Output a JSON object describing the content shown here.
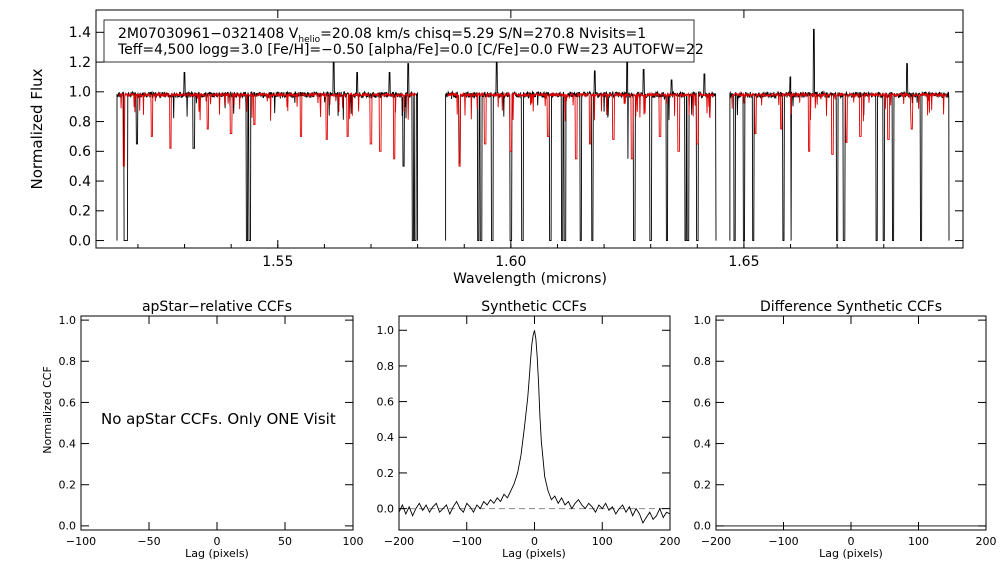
{
  "figure": {
    "header_line1": "2M07030961−0321408  V",
    "header_sub": "helio",
    "header_line1b": "=20.08 km/s  chisq=5.29  S/N=270.8  Nvisits=1",
    "header_line2": "Teff=4,500 logg=3.0 [Fe/H]=−0.50 [alpha/Fe]=0.0 [C/Fe]=0.0 FW=23 AUTOFW=22",
    "no_ccf_message": "No apStar CCFs.  Only ONE Visit"
  },
  "colors": {
    "observed": "#000000",
    "model": "#e00000",
    "zero_line": "#888888"
  },
  "chart_data": [
    {
      "type": "line",
      "xlabel": "Wavelength (microns)",
      "ylabel": "Normalized Flux",
      "xlim": [
        1.511,
        1.697
      ],
      "ylim": [
        -0.05,
        1.55
      ],
      "xticks": [
        1.55,
        1.6,
        1.65
      ],
      "xtick_labels": [
        "1.55",
        "1.60",
        "1.65"
      ],
      "yticks": [
        0.0,
        0.2,
        0.4,
        0.6,
        0.8,
        1.0,
        1.2,
        1.4
      ],
      "ytick_labels": [
        "0.0",
        "0.2",
        "0.4",
        "0.6",
        "0.8",
        "1.0",
        "1.2",
        "1.4"
      ],
      "chips": [
        [
          1.5155,
          1.58
        ],
        [
          1.586,
          1.644
        ],
        [
          1.647,
          1.694
        ]
      ],
      "continuum": 0.98,
      "observed_absorption": [
        [
          1.5172,
          0.0
        ],
        [
          1.5176,
          0.0
        ],
        [
          1.5198,
          0.65
        ],
        [
          1.532,
          0.62
        ],
        [
          1.5434,
          0.0
        ],
        [
          1.544,
          0.0
        ],
        [
          1.577,
          0.5
        ],
        [
          1.579,
          0.0
        ],
        [
          1.5795,
          0.0
        ],
        [
          1.589,
          0.52
        ],
        [
          1.593,
          0.0
        ],
        [
          1.5936,
          0.0
        ],
        [
          1.596,
          0.0
        ],
        [
          1.6,
          0.0
        ],
        [
          1.6025,
          0.0
        ],
        [
          1.6085,
          0.0
        ],
        [
          1.611,
          0.0
        ],
        [
          1.6116,
          0.0
        ],
        [
          1.615,
          0.0
        ],
        [
          1.6175,
          0.0
        ],
        [
          1.625,
          0.55
        ],
        [
          1.6265,
          0.0
        ],
        [
          1.63,
          0.0
        ],
        [
          1.6335,
          0.0
        ],
        [
          1.6375,
          0.0
        ],
        [
          1.638,
          0.0
        ],
        [
          1.64,
          0.0
        ],
        [
          1.648,
          0.0
        ],
        [
          1.65,
          0.0
        ],
        [
          1.652,
          0.0
        ],
        [
          1.6585,
          0.0
        ],
        [
          1.66,
          0.0
        ],
        [
          1.67,
          0.0
        ],
        [
          1.6715,
          0.0
        ],
        [
          1.6785,
          0.0
        ],
        [
          1.68,
          0.0
        ],
        [
          1.682,
          0.0
        ],
        [
          1.688,
          0.0
        ]
      ],
      "observed_emission": [
        [
          1.53,
          1.13
        ],
        [
          1.562,
          1.24
        ],
        [
          1.567,
          1.13
        ],
        [
          1.574,
          1.13
        ],
        [
          1.578,
          1.19
        ],
        [
          1.597,
          1.2
        ],
        [
          1.618,
          1.14
        ],
        [
          1.625,
          1.22
        ],
        [
          1.6285,
          1.15
        ],
        [
          1.6345,
          1.08
        ],
        [
          1.6415,
          1.12
        ],
        [
          1.66,
          1.1
        ],
        [
          1.665,
          1.42
        ],
        [
          1.685,
          1.19
        ]
      ],
      "model_absorption": [
        [
          1.517,
          0.5
        ],
        [
          1.523,
          0.7
        ],
        [
          1.527,
          0.62
        ],
        [
          1.535,
          0.75
        ],
        [
          1.54,
          0.72
        ],
        [
          1.545,
          0.78
        ],
        [
          1.555,
          0.7
        ],
        [
          1.5605,
          0.68
        ],
        [
          1.565,
          0.7
        ],
        [
          1.57,
          0.65
        ],
        [
          1.572,
          0.6
        ],
        [
          1.575,
          0.55
        ],
        [
          1.589,
          0.5
        ],
        [
          1.5945,
          0.65
        ],
        [
          1.6,
          0.6
        ],
        [
          1.608,
          0.7
        ],
        [
          1.614,
          0.55
        ],
        [
          1.617,
          0.65
        ],
        [
          1.622,
          0.68
        ],
        [
          1.626,
          0.55
        ],
        [
          1.632,
          0.7
        ],
        [
          1.636,
          0.6
        ],
        [
          1.64,
          0.65
        ],
        [
          1.6525,
          0.72
        ],
        [
          1.658,
          0.75
        ],
        [
          1.664,
          0.6
        ],
        [
          1.669,
          0.58
        ],
        [
          1.672,
          0.66
        ],
        [
          1.675,
          0.7
        ],
        [
          1.681,
          0.68
        ],
        [
          1.686,
          0.75
        ]
      ]
    },
    {
      "type": "line",
      "title": "apStar−relative CCFs",
      "xlabel": "Lag (pixels)",
      "ylabel": "Normalized CCF",
      "xlim": [
        -100,
        100
      ],
      "ylim": [
        -0.02,
        1.02
      ],
      "xticks": [
        -100,
        -50,
        0,
        50,
        100
      ],
      "xtick_labels": [
        "−100",
        "−50",
        "0",
        "50",
        "100"
      ],
      "yticks": [
        0.0,
        0.2,
        0.4,
        0.6,
        0.8,
        1.0
      ],
      "ytick_labels": [
        "0.0",
        "0.2",
        "0.4",
        "0.6",
        "0.8",
        "1.0"
      ],
      "series": []
    },
    {
      "type": "line",
      "title": "Synthetic CCFs",
      "xlabel": "Lag (pixels)",
      "xlim": [
        -200,
        200
      ],
      "ylim": [
        -0.12,
        1.08
      ],
      "xticks": [
        -200,
        -100,
        0,
        100,
        200
      ],
      "xtick_labels": [
        "−200",
        "−100",
        "0",
        "100",
        "200"
      ],
      "yticks": [
        0.0,
        0.2,
        0.4,
        0.6,
        0.8,
        1.0
      ],
      "ytick_labels": [
        "0.0",
        "0.2",
        "0.4",
        "0.6",
        "0.8",
        "1.0"
      ],
      "reference_line": 0.0,
      "series": [
        {
          "x": [
            -200,
            -195,
            -190,
            -185,
            -180,
            -175,
            -170,
            -165,
            -160,
            -155,
            -150,
            -145,
            -140,
            -135,
            -130,
            -125,
            -120,
            -115,
            -110,
            -105,
            -100,
            -95,
            -90,
            -85,
            -80,
            -75,
            -70,
            -65,
            -60,
            -55,
            -50,
            -45,
            -40,
            -35,
            -30,
            -25,
            -20,
            -15,
            -10,
            -8,
            -6,
            -4,
            -2,
            0,
            2,
            4,
            6,
            8,
            10,
            15,
            20,
            25,
            30,
            35,
            40,
            45,
            50,
            55,
            60,
            65,
            70,
            75,
            80,
            85,
            90,
            95,
            100,
            105,
            110,
            115,
            120,
            125,
            130,
            135,
            140,
            145,
            150,
            155,
            160,
            165,
            170,
            175,
            180,
            185,
            190,
            195,
            200
          ],
          "y": [
            -0.02,
            0.02,
            -0.03,
            0.01,
            -0.04,
            0.0,
            0.03,
            -0.01,
            0.02,
            -0.02,
            0.01,
            0.03,
            -0.02,
            0.0,
            0.02,
            -0.03,
            0.01,
            0.04,
            0.0,
            -0.02,
            0.03,
            0.01,
            -0.02,
            0.02,
            0.0,
            0.04,
            0.02,
            0.05,
            0.03,
            0.06,
            0.04,
            0.08,
            0.06,
            0.1,
            0.14,
            0.2,
            0.3,
            0.45,
            0.62,
            0.72,
            0.82,
            0.92,
            0.97,
            1.0,
            0.95,
            0.85,
            0.7,
            0.52,
            0.38,
            0.18,
            0.1,
            0.05,
            0.07,
            0.03,
            0.06,
            0.02,
            0.04,
            0.0,
            0.03,
            0.05,
            0.02,
            0.0,
            0.03,
            0.01,
            -0.02,
            0.02,
            0.0,
            0.03,
            -0.01,
            0.01,
            -0.03,
            0.0,
            0.02,
            -0.02,
            0.01,
            -0.04,
            0.0,
            -0.03,
            -0.08,
            -0.05,
            -0.02,
            -0.06,
            -0.04,
            0.0,
            -0.05,
            -0.02,
            -0.03
          ]
        }
      ]
    },
    {
      "type": "line",
      "title": "Difference Synthetic CCFs",
      "xlabel": "Lag (pixels)",
      "xlim": [
        -200,
        200
      ],
      "ylim": [
        -0.02,
        1.02
      ],
      "xticks": [
        -200,
        -100,
        0,
        100,
        200
      ],
      "xtick_labels": [
        "−200",
        "−100",
        "0",
        "100",
        "200"
      ],
      "yticks": [
        0.0,
        0.2,
        0.4,
        0.6,
        0.8,
        1.0
      ],
      "ytick_labels": [
        "0.0",
        "0.2",
        "0.4",
        "0.6",
        "0.8",
        "1.0"
      ],
      "series": [
        {
          "x": [
            -200,
            200
          ],
          "y": [
            0.0,
            0.0
          ]
        }
      ]
    }
  ]
}
